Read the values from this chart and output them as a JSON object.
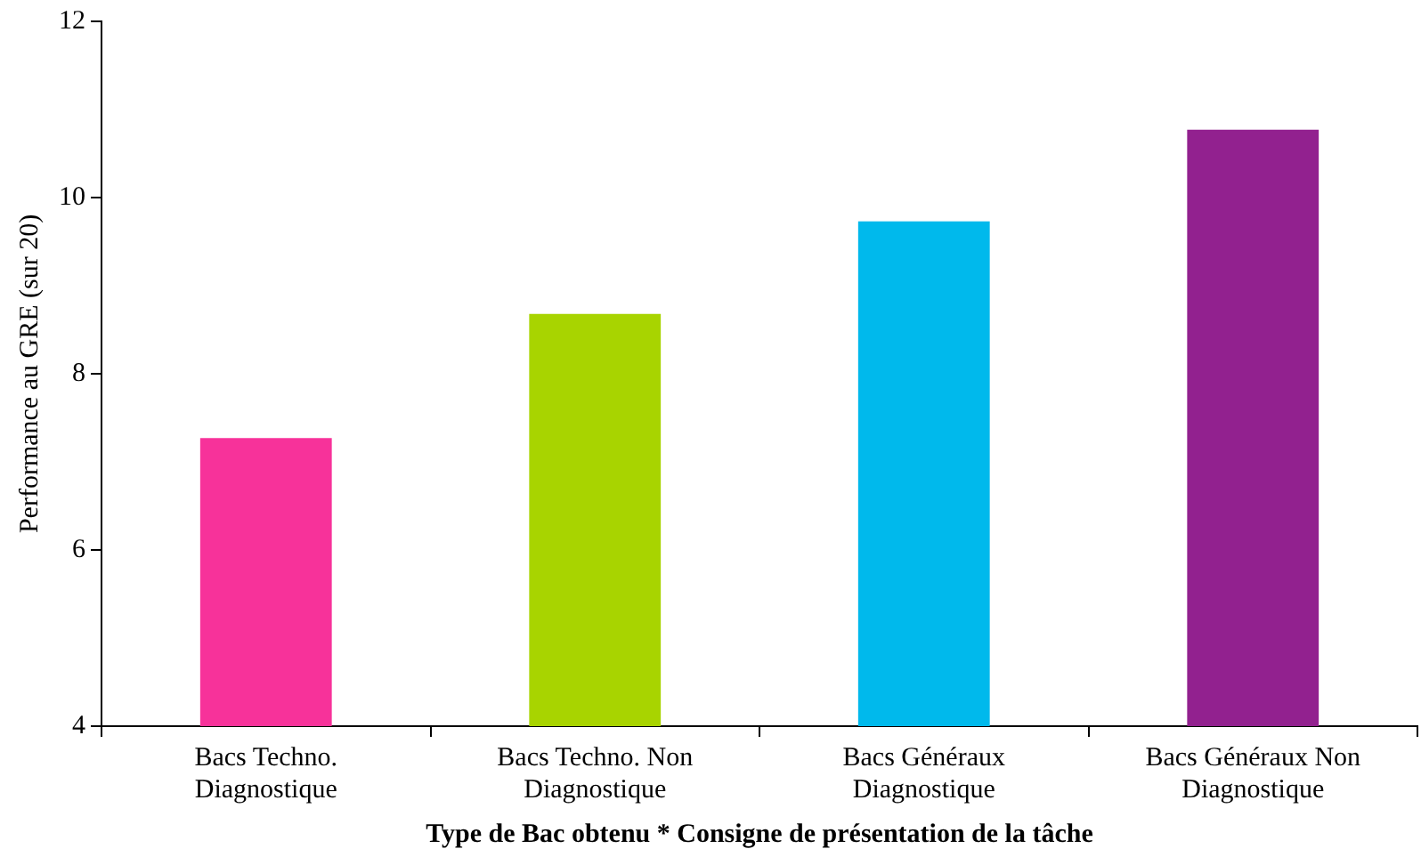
{
  "chart_data": {
    "type": "bar",
    "xlabel": "Type de Bac obtenu * Consigne de présentation de la tâche",
    "ylabel": "Performance au GRE (sur 20)",
    "categories": [
      "Bacs Techno.\nDiagnostique",
      "Bacs Techno. Non\nDiagnostique",
      "Bacs Généraux\nDiagnostique",
      "Bacs Généraux Non\nDiagnostique"
    ],
    "values": [
      7.27,
      8.68,
      9.73,
      10.77
    ],
    "colors": [
      "#f7329a",
      "#a8d400",
      "#00b9ec",
      "#92218f"
    ],
    "ylim": [
      4,
      12
    ],
    "yticks": [
      4,
      6,
      8,
      10,
      12
    ],
    "grid": false,
    "legend": false
  }
}
